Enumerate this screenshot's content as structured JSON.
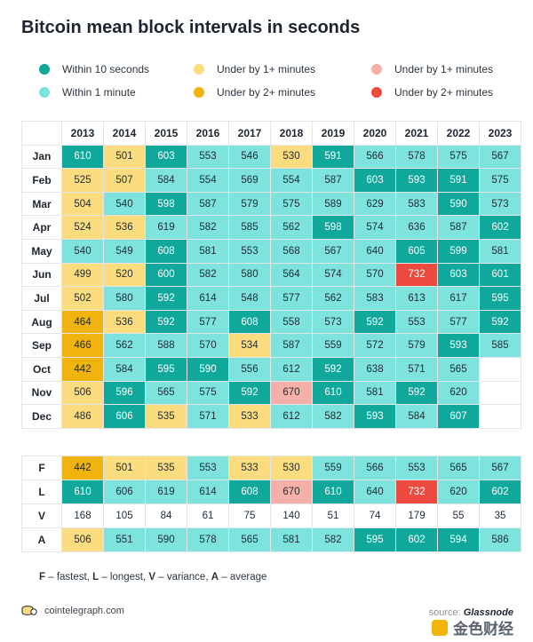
{
  "title": "Bitcoin mean block intervals in seconds",
  "legend": [
    {
      "label": "Within 10 seconds",
      "color": "#0fa89a"
    },
    {
      "label": "Within 1 minute",
      "color": "#7ee3dc"
    },
    {
      "label": "Under by 1+ minutes",
      "color": "#fbdc7e"
    },
    {
      "label": "Under by 2+ minutes",
      "color": "#f1b30e"
    },
    {
      "label": "Under by 1+ minutes",
      "color": "#f6b0aa"
    },
    {
      "label": "Under by 2+ minutes",
      "color": "#ec4a3f"
    }
  ],
  "colors": {
    "D": "#0fa89a",
    "L": "#7ee3dc",
    "Y": "#fbdc7e",
    "O": "#f1b30e",
    "P": "#f6b0aa",
    "R": "#ec4a3f",
    "W": "#ffffff"
  },
  "chart_data": {
    "type": "table",
    "title": "Bitcoin mean block intervals in seconds",
    "years": [
      "2013",
      "2014",
      "2015",
      "2016",
      "2017",
      "2018",
      "2019",
      "2020",
      "2021",
      "2022",
      "2023"
    ],
    "months": [
      "Jan",
      "Feb",
      "Mar",
      "Apr",
      "May",
      "Jun",
      "Jul",
      "Aug",
      "Sep",
      "Oct",
      "Nov",
      "Dec"
    ],
    "values": [
      [
        610,
        501,
        603,
        553,
        546,
        530,
        591,
        566,
        578,
        575,
        567
      ],
      [
        525,
        507,
        584,
        554,
        569,
        554,
        587,
        603,
        593,
        591,
        575
      ],
      [
        504,
        540,
        598,
        587,
        579,
        575,
        589,
        629,
        583,
        590,
        573
      ],
      [
        524,
        536,
        619,
        582,
        585,
        562,
        598,
        574,
        636,
        587,
        602
      ],
      [
        540,
        549,
        608,
        581,
        553,
        568,
        567,
        640,
        605,
        599,
        581
      ],
      [
        499,
        520,
        600,
        582,
        580,
        564,
        574,
        570,
        732,
        603,
        601
      ],
      [
        502,
        580,
        592,
        614,
        548,
        577,
        562,
        583,
        613,
        617,
        595
      ],
      [
        464,
        536,
        592,
        577,
        608,
        558,
        573,
        592,
        553,
        577,
        592
      ],
      [
        466,
        562,
        588,
        570,
        534,
        587,
        559,
        572,
        579,
        593,
        585
      ],
      [
        442,
        584,
        595,
        590,
        556,
        612,
        592,
        638,
        571,
        565,
        null
      ],
      [
        506,
        596,
        565,
        575,
        592,
        670,
        610,
        581,
        592,
        620,
        null
      ],
      [
        486,
        606,
        535,
        571,
        533,
        612,
        582,
        593,
        584,
        607,
        null
      ]
    ],
    "colorCodes": [
      [
        "D",
        "Y",
        "D",
        "L",
        "L",
        "Y",
        "D",
        "L",
        "L",
        "L",
        "L"
      ],
      [
        "Y",
        "Y",
        "L",
        "L",
        "L",
        "L",
        "L",
        "D",
        "D",
        "D",
        "L"
      ],
      [
        "Y",
        "L",
        "D",
        "L",
        "L",
        "L",
        "L",
        "L",
        "L",
        "D",
        "L"
      ],
      [
        "Y",
        "Y",
        "L",
        "L",
        "L",
        "L",
        "D",
        "L",
        "L",
        "L",
        "D"
      ],
      [
        "L",
        "L",
        "D",
        "L",
        "L",
        "L",
        "L",
        "L",
        "D",
        "D",
        "L"
      ],
      [
        "Y",
        "Y",
        "D",
        "L",
        "L",
        "L",
        "L",
        "L",
        "R",
        "D",
        "D"
      ],
      [
        "Y",
        "L",
        "D",
        "L",
        "L",
        "L",
        "L",
        "L",
        "L",
        "L",
        "D"
      ],
      [
        "O",
        "Y",
        "D",
        "L",
        "D",
        "L",
        "L",
        "D",
        "L",
        "L",
        "D"
      ],
      [
        "O",
        "L",
        "L",
        "L",
        "Y",
        "L",
        "L",
        "L",
        "L",
        "D",
        "L"
      ],
      [
        "O",
        "L",
        "D",
        "D",
        "L",
        "L",
        "D",
        "L",
        "L",
        "L",
        "W"
      ],
      [
        "Y",
        "D",
        "L",
        "L",
        "D",
        "P",
        "D",
        "L",
        "D",
        "L",
        "W"
      ],
      [
        "Y",
        "D",
        "Y",
        "L",
        "Y",
        "L",
        "L",
        "D",
        "L",
        "D",
        "W"
      ]
    ],
    "summary": {
      "rows": [
        "F",
        "L",
        "V",
        "A"
      ],
      "values": [
        [
          442,
          501,
          535,
          553,
          533,
          530,
          559,
          566,
          553,
          565,
          567
        ],
        [
          610,
          606,
          619,
          614,
          608,
          670,
          610,
          640,
          732,
          620,
          602
        ],
        [
          168,
          105,
          84,
          61,
          75,
          140,
          51,
          74,
          179,
          55,
          35
        ],
        [
          506,
          551,
          590,
          578,
          565,
          581,
          582,
          595,
          602,
          594,
          586
        ]
      ],
      "colorCodes": [
        [
          "O",
          "Y",
          "Y",
          "L",
          "Y",
          "Y",
          "L",
          "L",
          "L",
          "L",
          "L"
        ],
        [
          "D",
          "L",
          "L",
          "L",
          "D",
          "P",
          "D",
          "L",
          "R",
          "L",
          "D"
        ],
        [
          "W",
          "W",
          "W",
          "W",
          "W",
          "W",
          "W",
          "W",
          "W",
          "W",
          "W"
        ],
        [
          "Y",
          "L",
          "L",
          "L",
          "L",
          "L",
          "L",
          "D",
          "D",
          "D",
          "L"
        ]
      ]
    }
  },
  "footnote": {
    "F": "F",
    "F_text": " – fastest, ",
    "L": "L",
    "L_text": " – longest, ",
    "V": "V",
    "V_text": " – variance, ",
    "A": "A",
    "A_text": " – average"
  },
  "brand": "cointelegraph.com",
  "source_label": "source: ",
  "source_name": "Glassnode",
  "watermark": "金色财经"
}
